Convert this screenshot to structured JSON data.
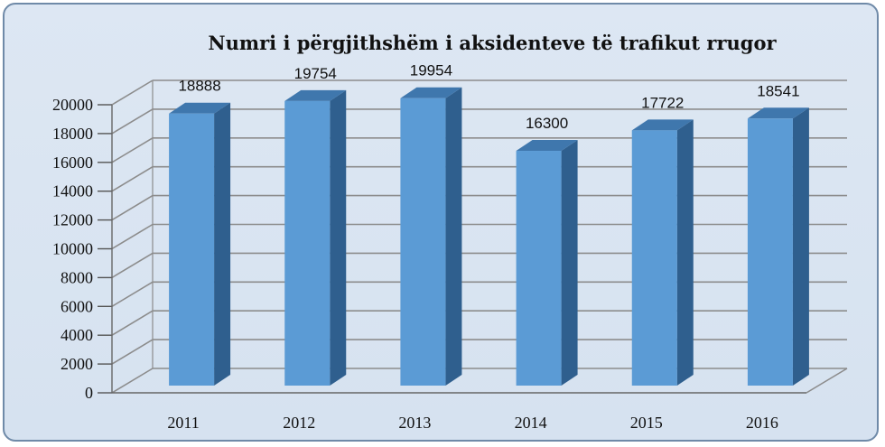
{
  "chart_data": {
    "type": "bar",
    "title": "Numri i përgjithshëm i aksidenteve të trafikut rrugor",
    "categories": [
      "2011",
      "2012",
      "2013",
      "2014",
      "2015",
      "2016"
    ],
    "values": [
      18888,
      19754,
      19954,
      16300,
      17722,
      18541
    ],
    "value_labels": [
      "18888",
      "19754",
      "19954",
      "16300",
      "17722",
      "18541"
    ],
    "ylim": [
      0,
      20000
    ],
    "yticks": [
      "0",
      "2000",
      "4000",
      "6000",
      "8000",
      "10000",
      "12000",
      "14000",
      "16000",
      "18000",
      "20000"
    ],
    "grid": true,
    "style": "3d-column",
    "colors": {
      "bar_front": "#5b9bd5",
      "bar_side": "#2f5f8e",
      "bar_top": "#3f77ad",
      "grid": "#8c8c8c",
      "background": "#dae5f1",
      "border": "#6f8aa8"
    }
  }
}
